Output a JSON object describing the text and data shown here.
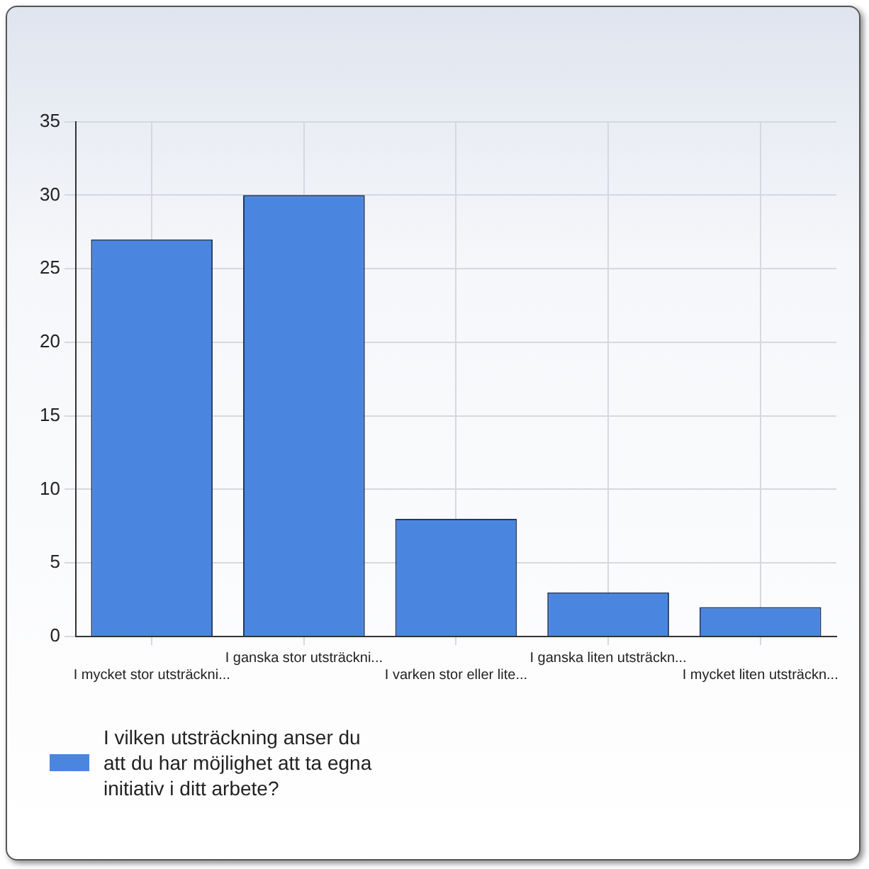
{
  "chart_data": {
    "type": "bar",
    "categories": [
      "I mycket stor utsträckni...",
      "I ganska stor utsträckni...",
      "I varken stor eller lite...",
      "I ganska liten utsträckn...",
      "I mycket liten utsträckn..."
    ],
    "series": [
      {
        "name": "I vilken utsträckning anser du att du har möjlighet att ta egna initiativ i ditt arbete?",
        "color": "#4a86e0",
        "values": [
          27,
          30,
          8,
          3,
          2
        ]
      }
    ],
    "ylim": [
      0,
      35
    ],
    "yticks": [
      0,
      5,
      10,
      15,
      20,
      25,
      30,
      35
    ],
    "grid": true,
    "legend": "bottom"
  }
}
